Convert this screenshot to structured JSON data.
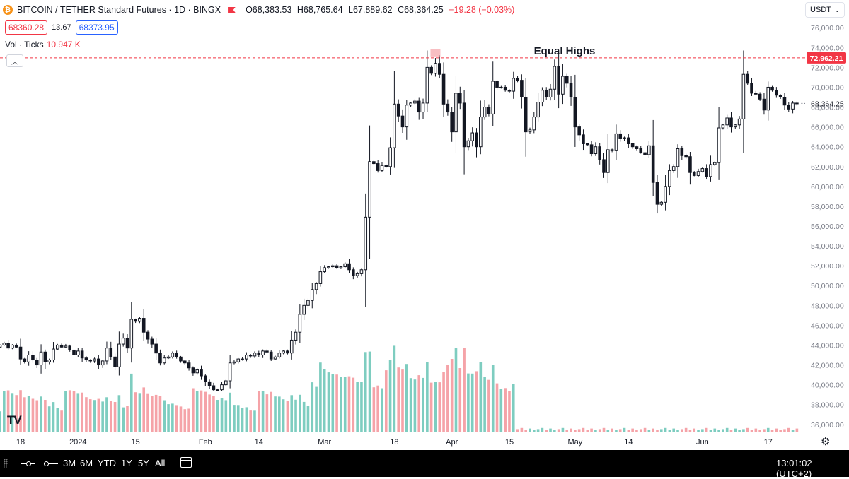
{
  "header": {
    "symbol": "BITCOIN / TETHER Standard Futures",
    "interval": "1D",
    "exchange": "BINGX",
    "ohlc": {
      "open": "O68,383.53",
      "high": "H68,765.64",
      "low": "L67,889.62",
      "close": "C68,364.25",
      "change": "−19.28 (−0.03%)"
    },
    "sell_price": "68360.28",
    "spread": "13.67",
    "buy_price": "68373.95",
    "volume_label": "Vol · Ticks",
    "volume_value": "10.947 K"
  },
  "currency": "USDT",
  "colors": {
    "up": "#089981",
    "down": "#f23645",
    "candle_up_fill": "#ffffff",
    "candle_down_fill": "#131722",
    "vol_up": "#7ecdc0",
    "vol_down": "#f5a3a8",
    "bottom_bar": "#000000"
  },
  "bottom_bar": {
    "ranges": [
      "3M",
      "6M",
      "YTD",
      "1Y",
      "5Y",
      "All"
    ],
    "clock": "13:01:02 (UTC+2)"
  },
  "chart_data": {
    "type": "candlestick",
    "price_axis": {
      "ticks": [
        "76,000.00",
        "74,000.00",
        "72,000.00",
        "70,000.00",
        "68,000.00",
        "66,000.00",
        "64,000.00",
        "62,000.00",
        "60,000.00",
        "58,000.00",
        "56,000.00",
        "54,000.00",
        "52,000.00",
        "50,000.00",
        "48,000.00",
        "46,000.00",
        "44,000.00",
        "42,000.00",
        "40,000.00",
        "38,000.00",
        "36,000.00"
      ],
      "range": [
        35200,
        76800
      ]
    },
    "time_axis": {
      "labels": [
        {
          "label": "18",
          "day": 18
        },
        {
          "label": "2024",
          "day": 32
        },
        {
          "label": "15",
          "day": 46
        },
        {
          "label": "Feb",
          "day": 63
        },
        {
          "label": "14",
          "day": 76
        },
        {
          "label": "Mar",
          "day": 92
        },
        {
          "label": "18",
          "day": 109
        },
        {
          "label": "Apr",
          "day": 123
        },
        {
          "label": "15",
          "day": 137
        },
        {
          "label": "May",
          "day": 153
        },
        {
          "label": "14",
          "day": 166
        },
        {
          "label": "Jun",
          "day": 184
        },
        {
          "label": "17",
          "day": 200
        }
      ],
      "range": [
        13,
        209
      ]
    },
    "equal_highs": {
      "label": "Equal Highs",
      "level": 72962.21,
      "tag": "72,962.21"
    },
    "last_price": {
      "level": 68364.25,
      "tag": "68,364.25"
    },
    "closes": [
      44000,
      44200,
      43700,
      44000,
      43800,
      42600,
      42300,
      43000,
      42500,
      42000,
      43300,
      42300,
      42500,
      43600,
      44000,
      43800,
      43900,
      43500,
      43000,
      43400,
      42700,
      42500,
      42400,
      42600,
      42000,
      42400,
      43700,
      42800,
      41800,
      44100,
      44700,
      43700,
      46600,
      46400,
      46700,
      45300,
      44600,
      44100,
      43200,
      42200,
      42700,
      42800,
      43200,
      42800,
      42400,
      42200,
      41700,
      41200,
      41500,
      40900,
      40300,
      39900,
      39500,
      39500,
      40000,
      40400,
      42200,
      42300,
      42600,
      42600,
      43000,
      42900,
      43200,
      43000,
      43400,
      43300,
      42600,
      42800,
      43200,
      43400,
      43200,
      44500,
      45300,
      47100,
      48000,
      48500,
      49600,
      50200,
      51400,
      51800,
      51900,
      52000,
      51800,
      51900,
      52200,
      51600,
      51000,
      51200,
      51600,
      56900,
      62500,
      62300,
      61600,
      62100,
      62000,
      63900,
      68300,
      67100,
      66000,
      68200,
      68400,
      68600,
      67500,
      68400,
      72000,
      71400,
      72400,
      71300,
      68300,
      67500,
      65500,
      69400,
      68400,
      64000,
      64600,
      65400,
      64000,
      67000,
      68000,
      67300,
      70600,
      70000,
      70000,
      69700,
      69600,
      70900,
      70700,
      69000,
      65500,
      65700,
      67000,
      68500,
      69700,
      69000,
      69800,
      72100,
      69300,
      71100,
      70400,
      69000,
      66000,
      65200,
      64300,
      64200,
      63300,
      64000,
      62700,
      61400,
      63700,
      63600,
      65300,
      64800,
      64900,
      64300,
      64000,
      63800,
      63400,
      63200,
      64100,
      60400,
      58200,
      58400,
      60000,
      61600,
      62000,
      63800,
      63100,
      63000,
      61400,
      61100,
      61500,
      61800,
      61000,
      62200,
      62400,
      65900,
      66200,
      66900,
      66000,
      66200,
      66800,
      71300,
      70400,
      69400,
      69300,
      68800,
      67700,
      70000,
      69700,
      69200,
      69000,
      68200,
      67800,
      68400,
      68364
    ]
  }
}
